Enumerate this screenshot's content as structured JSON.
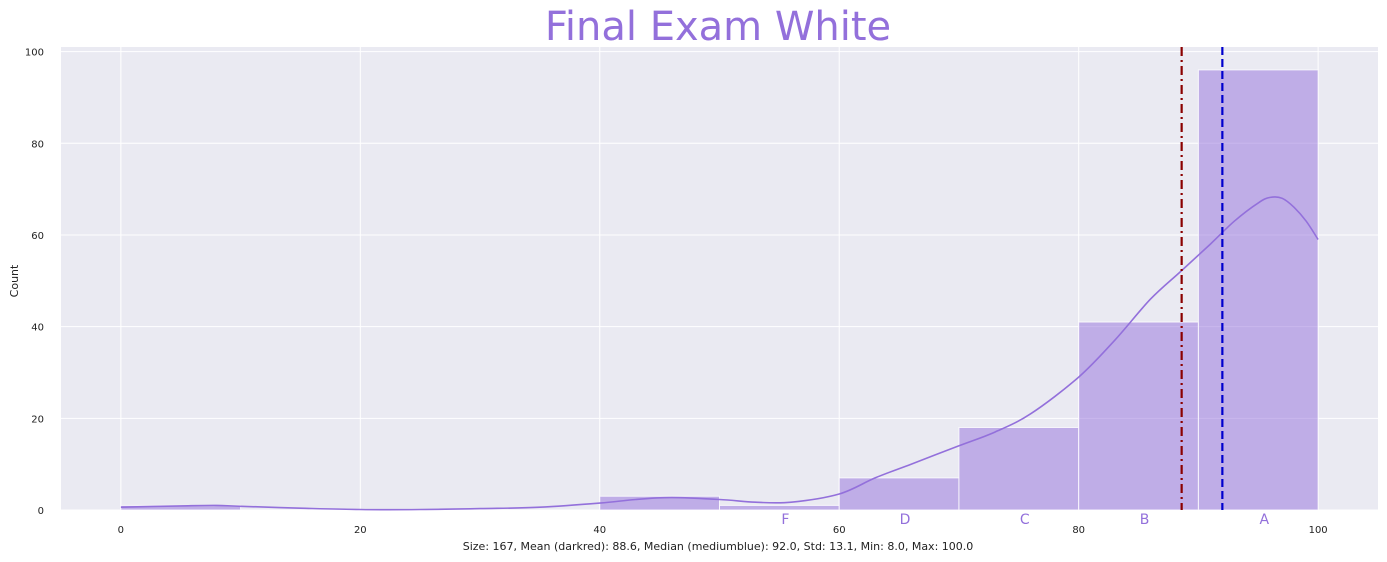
{
  "chart_data": {
    "type": "bar",
    "title": "Final Exam White",
    "xlabel": "Size: 167, Mean (darkred): 88.6, Median (mediumblue): 92.0, Std: 13.1, Min: 8.0, Max: 100.0",
    "ylabel": "Count",
    "xlim": [
      -5,
      105
    ],
    "ylim": [
      0,
      101
    ],
    "xticks": [
      0,
      20,
      40,
      60,
      80,
      100
    ],
    "yticks": [
      0,
      20,
      40,
      60,
      80,
      100
    ],
    "grid": true,
    "bins": [
      {
        "start": 0,
        "end": 10,
        "count": 1
      },
      {
        "start": 10,
        "end": 20,
        "count": 0
      },
      {
        "start": 20,
        "end": 30,
        "count": 0
      },
      {
        "start": 30,
        "end": 40,
        "count": 0
      },
      {
        "start": 40,
        "end": 50,
        "count": 3
      },
      {
        "start": 50,
        "end": 60,
        "count": 1
      },
      {
        "start": 60,
        "end": 70,
        "count": 7
      },
      {
        "start": 70,
        "end": 80,
        "count": 18
      },
      {
        "start": 80,
        "end": 90,
        "count": 41
      },
      {
        "start": 90,
        "end": 100,
        "count": 96
      }
    ],
    "kde": {
      "x": [
        0,
        5,
        8,
        10,
        15,
        20,
        25,
        30,
        35,
        40,
        43,
        46,
        50,
        53,
        56,
        60,
        63,
        66,
        70,
        73,
        76,
        80,
        83,
        86,
        88.5,
        91,
        93,
        95,
        96,
        97,
        98,
        99,
        100
      ],
      "y": [
        0.6,
        0.9,
        1.0,
        0.8,
        0.4,
        0.1,
        0.1,
        0.3,
        0.6,
        1.5,
        2.3,
        2.7,
        2.3,
        1.7,
        1.7,
        3.5,
        7,
        10,
        14,
        17,
        21,
        29,
        37,
        46,
        52,
        58,
        63,
        67,
        68.2,
        68,
        66,
        63,
        59
      ]
    },
    "vlines": [
      {
        "name": "Mean",
        "x": 88.6,
        "color": "#8b0000",
        "style": "dashdot"
      },
      {
        "name": "Median",
        "x": 92.0,
        "color": "#0000cd",
        "style": "dashed"
      }
    ],
    "grade_labels": [
      {
        "label": "F",
        "x": 55.5
      },
      {
        "label": "D",
        "x": 65.5
      },
      {
        "label": "C",
        "x": 75.5
      },
      {
        "label": "B",
        "x": 85.5
      },
      {
        "label": "A",
        "x": 95.5
      }
    ],
    "colors": {
      "bar": "#9370db",
      "kde": "#9370db",
      "title": "#9370db",
      "background": "#eaeaf2",
      "grid": "#ffffff"
    }
  }
}
